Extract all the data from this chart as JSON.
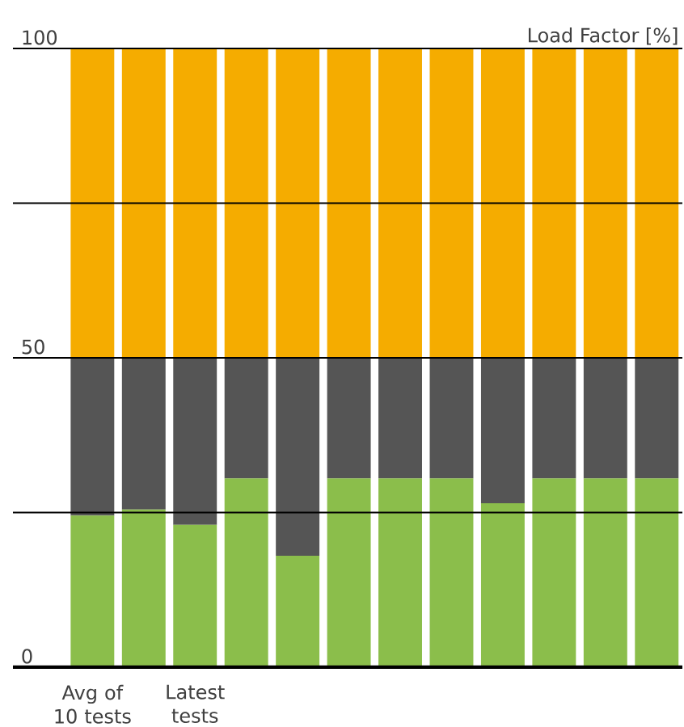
{
  "chart_data": {
    "type": "bar",
    "stacked": true,
    "ylabel": "Load Factor [%]",
    "categories": [
      "Avg of 10 tests",
      null,
      "Latest tests",
      null,
      null,
      null,
      null,
      null,
      null,
      null,
      null,
      null
    ],
    "series": [
      {
        "color": "#8bbe4b",
        "values": [
          24.5,
          25.5,
          23,
          30.5,
          18,
          30.5,
          30.5,
          30.5,
          26.5,
          30.5,
          30.5,
          30.5
        ]
      },
      {
        "color": "#555555",
        "values": [
          25.5,
          24.5,
          27,
          19.5,
          32,
          19.5,
          19.5,
          19.5,
          23.5,
          19.5,
          19.5,
          19.5
        ]
      },
      {
        "color": "#f5ac00",
        "values": [
          50,
          50,
          50,
          50,
          50,
          50,
          50,
          50,
          50,
          50,
          50,
          50
        ]
      }
    ],
    "ylim": [
      0,
      100
    ],
    "yticks": [
      0,
      {
        "value": 25,
        "label": null
      },
      50,
      {
        "value": 75,
        "label": null
      },
      100
    ],
    "grid": "y"
  }
}
